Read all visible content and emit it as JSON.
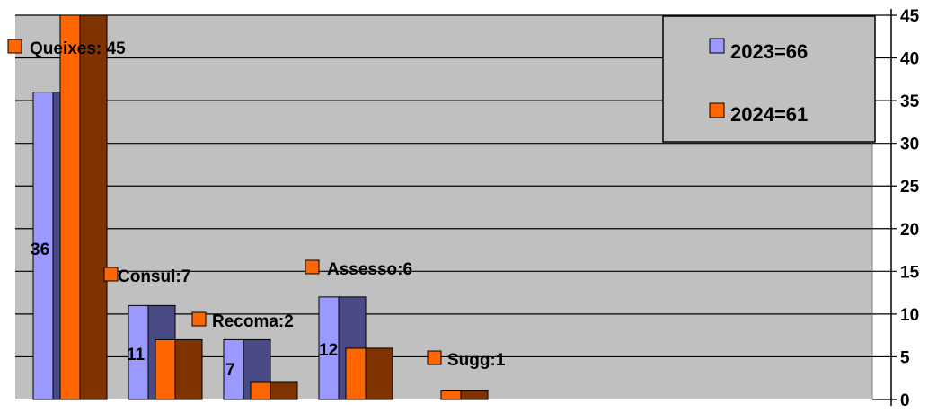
{
  "chart_data": {
    "type": "bar",
    "style": "3d-clustered",
    "categories": [
      "Queixes",
      "Consul",
      "Recoma",
      "Assesso",
      "Sugg"
    ],
    "series": [
      {
        "name": "2023=66",
        "color": "#9999ff",
        "values": [
          36,
          11,
          7,
          12,
          0
        ]
      },
      {
        "name": "2024=61",
        "color": "#ff6600",
        "values": [
          45,
          7,
          2,
          6,
          1
        ]
      }
    ],
    "data_labels_2023": [
      "36",
      "11",
      "7",
      "12",
      ""
    ],
    "data_labels_2024": [
      "Queixes: 45",
      "Consul:7",
      "Recoma:2",
      "Assesso:6",
      "Sugg:1"
    ],
    "y_ticks": [
      "0",
      "5",
      "10",
      "15",
      "20",
      "25",
      "30",
      "35",
      "40",
      "45"
    ],
    "ylim": [
      0,
      45
    ],
    "y_axis_position": "right",
    "grid": true,
    "legend_position": "top-right",
    "colors": {
      "plot_background": "#c0c0c0",
      "gridline": "#000000",
      "series_2023_front": "#9999ff",
      "series_2023_side": "#4a4a86",
      "series_2024_front": "#ff6600",
      "series_2024_side": "#7f3300"
    }
  }
}
